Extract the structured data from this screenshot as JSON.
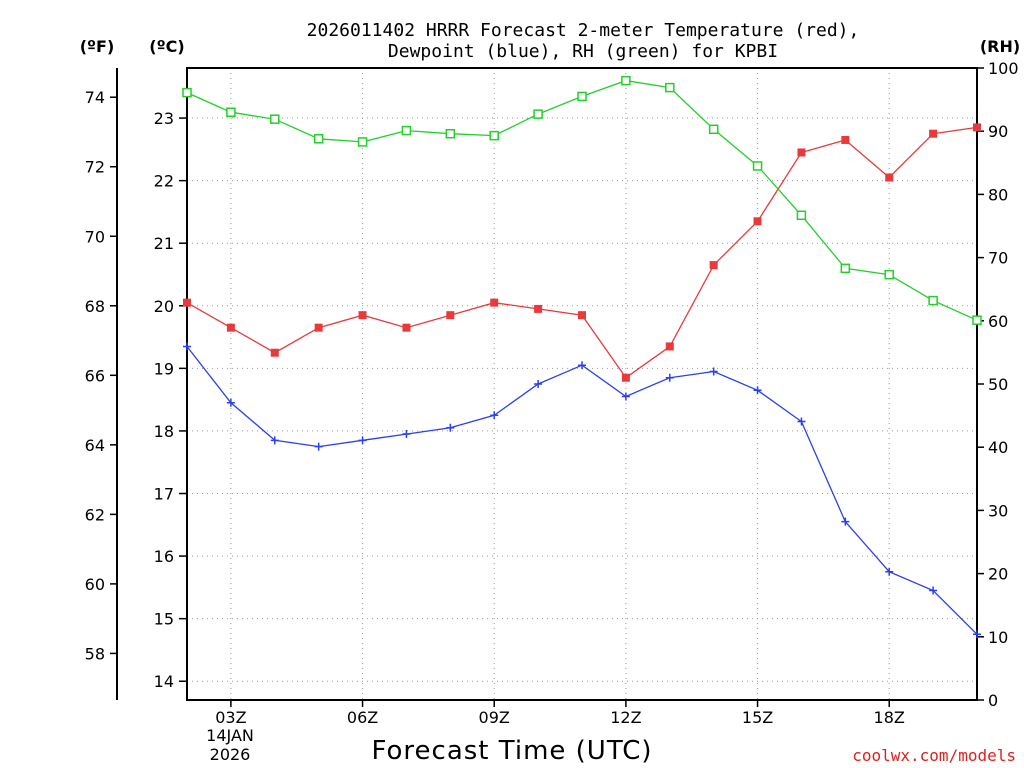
{
  "chart_data": {
    "type": "line",
    "title_line1": "2026011402 HRRR Forecast 2-meter Temperature (red),",
    "title_line2": "Dewpoint (blue), RH (green) for KPBI",
    "xlabel": "Forecast Time (UTC)",
    "credit": "coolwx.com/models",
    "date_line1": "14JAN",
    "date_line2": "2026",
    "unit_f": "(ºF)",
    "unit_c": "(ºC)",
    "unit_rh": "(RH)",
    "x_hours": [
      2,
      3,
      4,
      5,
      6,
      7,
      8,
      9,
      10,
      11,
      12,
      13,
      14,
      15,
      16,
      17,
      18,
      19,
      20
    ],
    "xlim": [
      2,
      20
    ],
    "x_ticks": [
      {
        "hour": 3,
        "label": "03Z"
      },
      {
        "hour": 6,
        "label": "06Z"
      },
      {
        "hour": 9,
        "label": "09Z"
      },
      {
        "hour": 12,
        "label": "12Z"
      },
      {
        "hour": 15,
        "label": "15Z"
      },
      {
        "hour": 18,
        "label": "18Z"
      }
    ],
    "c_axis": {
      "range": [
        13.7,
        23.8
      ],
      "ticks": [
        "14",
        "15",
        "16",
        "17",
        "18",
        "19",
        "20",
        "21",
        "22",
        "23"
      ]
    },
    "f_axis": {
      "ticks": [
        "58",
        "60",
        "62",
        "64",
        "66",
        "68",
        "70",
        "72",
        "74"
      ]
    },
    "rh_axis": {
      "range": [
        0,
        100
      ],
      "ticks": [
        "0",
        "10",
        "20",
        "30",
        "40",
        "50",
        "60",
        "70",
        "80",
        "90",
        "100"
      ]
    },
    "colors": {
      "temperature": "#e83a3a",
      "dewpoint": "#2a3ff0",
      "rh": "#22d02a"
    },
    "series": [
      {
        "name": "Temperature",
        "unit": "C",
        "marker": "filled-square",
        "values": [
          20.05,
          19.65,
          19.25,
          19.65,
          19.85,
          19.65,
          19.85,
          20.05,
          19.95,
          19.85,
          18.85,
          19.35,
          20.65,
          21.35,
          22.45,
          22.65,
          22.05,
          22.75,
          22.85
        ]
      },
      {
        "name": "Dewpoint",
        "unit": "C",
        "marker": "plus",
        "values": [
          19.35,
          18.45,
          17.85,
          17.75,
          17.85,
          17.95,
          18.05,
          18.25,
          18.75,
          19.05,
          18.55,
          18.85,
          18.95,
          18.65,
          18.15,
          16.55,
          15.75,
          15.45,
          14.75
        ]
      },
      {
        "name": "RH",
        "unit": "%",
        "marker": "open-square",
        "values": [
          96.1,
          93.0,
          91.9,
          88.8,
          88.3,
          90.1,
          89.6,
          89.3,
          92.7,
          95.5,
          98.0,
          96.9,
          90.3,
          84.5,
          76.7,
          68.3,
          67.3,
          63.2,
          60.1
        ]
      }
    ]
  }
}
